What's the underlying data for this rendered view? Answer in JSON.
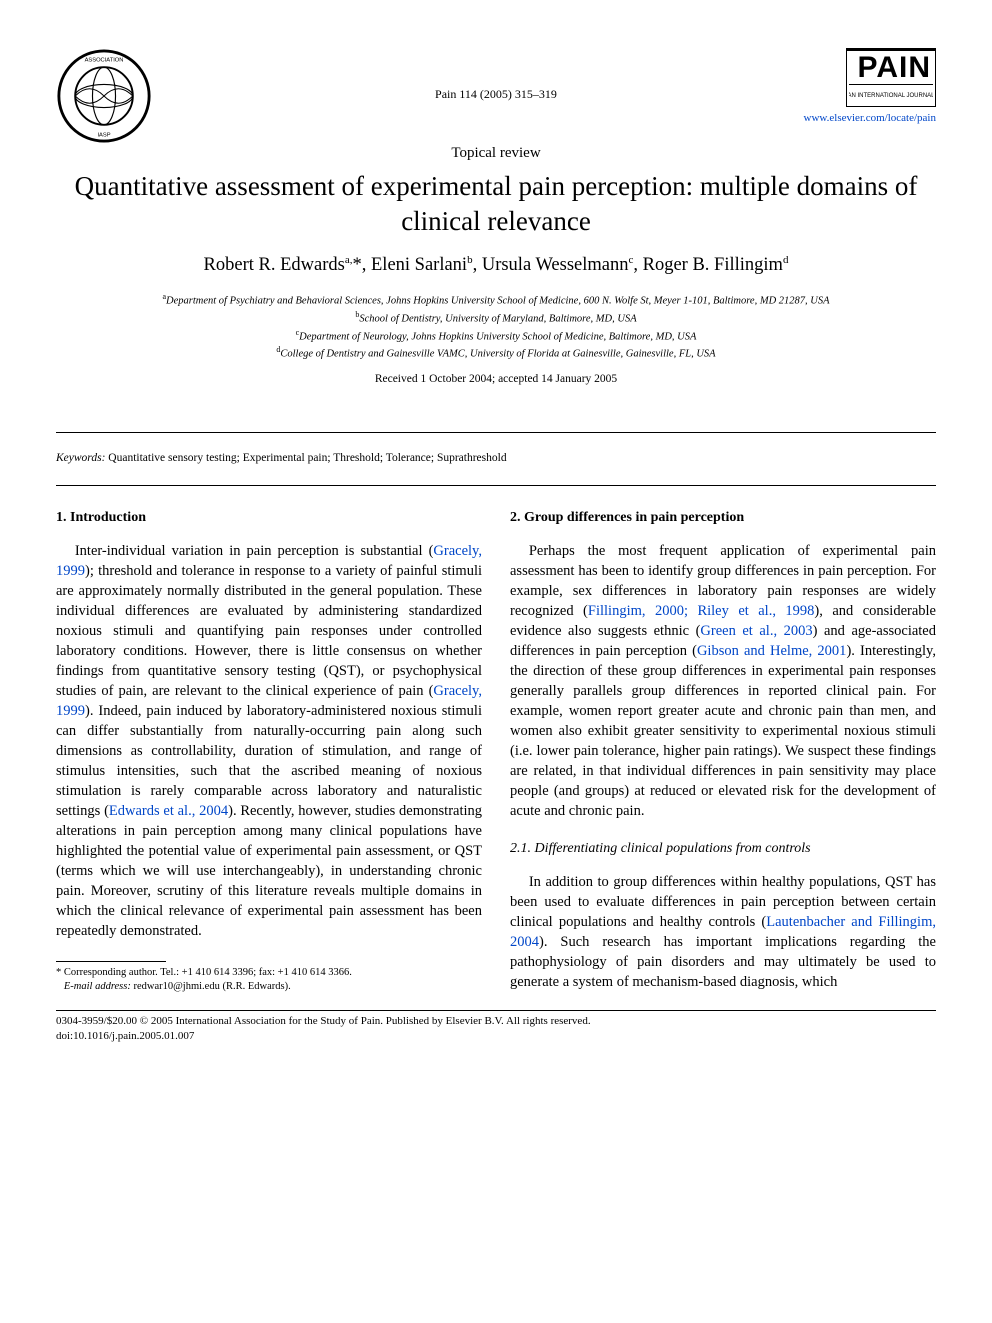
{
  "header": {
    "left_logo_alt": "IASP logo",
    "citation": "Pain 114 (2005) 315–319",
    "journal_name": "PAIN",
    "journal_url": "www.elsevier.com/locate/pain"
  },
  "article": {
    "type": "Topical review",
    "title": "Quantitative assessment of experimental pain perception: multiple domains of clinical relevance",
    "authors_html": "Robert R. Edwards<sup>a,</sup>*, Eleni Sarlani<sup>b</sup>, Ursula Wesselmann<sup>c</sup>, Roger B. Fillingim<sup>d</sup>",
    "affiliations": [
      {
        "sup": "a",
        "text": "Department of Psychiatry and Behavioral Sciences, Johns Hopkins University School of Medicine, 600 N. Wolfe St, Meyer 1-101, Baltimore, MD 21287, USA"
      },
      {
        "sup": "b",
        "text": "School of Dentistry, University of Maryland, Baltimore, MD, USA"
      },
      {
        "sup": "c",
        "text": "Department of Neurology, Johns Hopkins University School of Medicine, Baltimore, MD, USA"
      },
      {
        "sup": "d",
        "text": "College of Dentistry and Gainesville VAMC, University of Florida at Gainesville, Gainesville, FL, USA"
      }
    ],
    "dates": "Received 1 October 2004; accepted 14 January 2005",
    "keywords_label": "Keywords:",
    "keywords": "Quantitative sensory testing; Experimental pain; Threshold; Tolerance; Suprathreshold"
  },
  "sections": {
    "s1_heading": "1. Introduction",
    "s1_p1_a": "Inter-individual variation in pain perception is substantial (",
    "s1_ref1": "Gracely, 1999",
    "s1_p1_b": "); threshold and tolerance in response to a variety of painful stimuli are approximately normally distributed in the general population. These individual differences are evaluated by administering standardized noxious stimuli and quantifying pain responses under controlled laboratory conditions. However, there is little consensus on whether findings from quantitative sensory testing (QST), or psychophysical studies of pain, are relevant to the clinical experience of pain (",
    "s1_ref2": "Gracely, 1999",
    "s1_p1_c": "). Indeed, pain induced by laboratory-administered noxious stimuli can differ substantially from naturally-occurring pain along such dimensions as controllability, duration of stimulation, and range of stimulus intensities, such that the ascribed meaning of noxious stimulation is rarely comparable across laboratory and naturalistic settings (",
    "s1_ref3": "Edwards et al., 2004",
    "s1_p1_d": "). Recently, however, studies demonstrating alterations in pain perception among many clinical populations have highlighted the potential value of experimental pain assessment, or QST (terms which we will use interchangeably), in understanding chronic pain. Moreover, scrutiny of this literature reveals multiple domains in which the clinical relevance of experimental pain assessment has been repeatedly demonstrated.",
    "s2_heading": "2. Group differences in pain perception",
    "s2_p1_a": "Perhaps the most frequent application of experimental pain assessment has been to identify group differences in pain perception. For example, sex differences in laboratory pain responses are widely recognized (",
    "s2_ref1": "Fillingim, 2000; Riley et al., 1998",
    "s2_p1_b": "), and considerable evidence also suggests ethnic (",
    "s2_ref2": "Green et al., 2003",
    "s2_p1_c": ") and age-associated differences in pain perception (",
    "s2_ref3": "Gibson and Helme, 2001",
    "s2_p1_d": "). Interestingly, the direction of these group differences in experimental pain responses generally parallels group differences in reported clinical pain. For example, women report greater acute and chronic pain than men, and women also exhibit greater sensitivity to experimental noxious stimuli (i.e. lower pain tolerance, higher pain ratings). We suspect these findings are related, in that individual differences in pain sensitivity may place people (and groups) at reduced or elevated risk for the development of acute and chronic pain.",
    "s21_heading": "2.1. Differentiating clinical populations from controls",
    "s21_p1_a": "In addition to group differences within healthy populations, QST has been used to evaluate differences in pain perception between certain clinical populations and healthy controls (",
    "s21_ref1": "Lautenbacher and Fillingim, 2004",
    "s21_p1_b": "). Such research has important implications regarding the pathophysiology of pain disorders and may ultimately be used to generate a system of mechanism-based diagnosis, which"
  },
  "footnote": {
    "corresponding": "* Corresponding author. Tel.: +1 410 614 3396; fax: +1 410 614 3366.",
    "email_label": "E-mail address:",
    "email": "redwar10@jhmi.edu (R.R. Edwards)."
  },
  "footer": {
    "copyright": "0304-3959/$20.00 © 2005 International Association for the Study of Pain. Published by Elsevier B.V. All rights reserved.",
    "doi": "doi:10.1016/j.pain.2005.01.007"
  },
  "colors": {
    "link": "#0046c8",
    "text": "#000000",
    "background": "#ffffff"
  }
}
